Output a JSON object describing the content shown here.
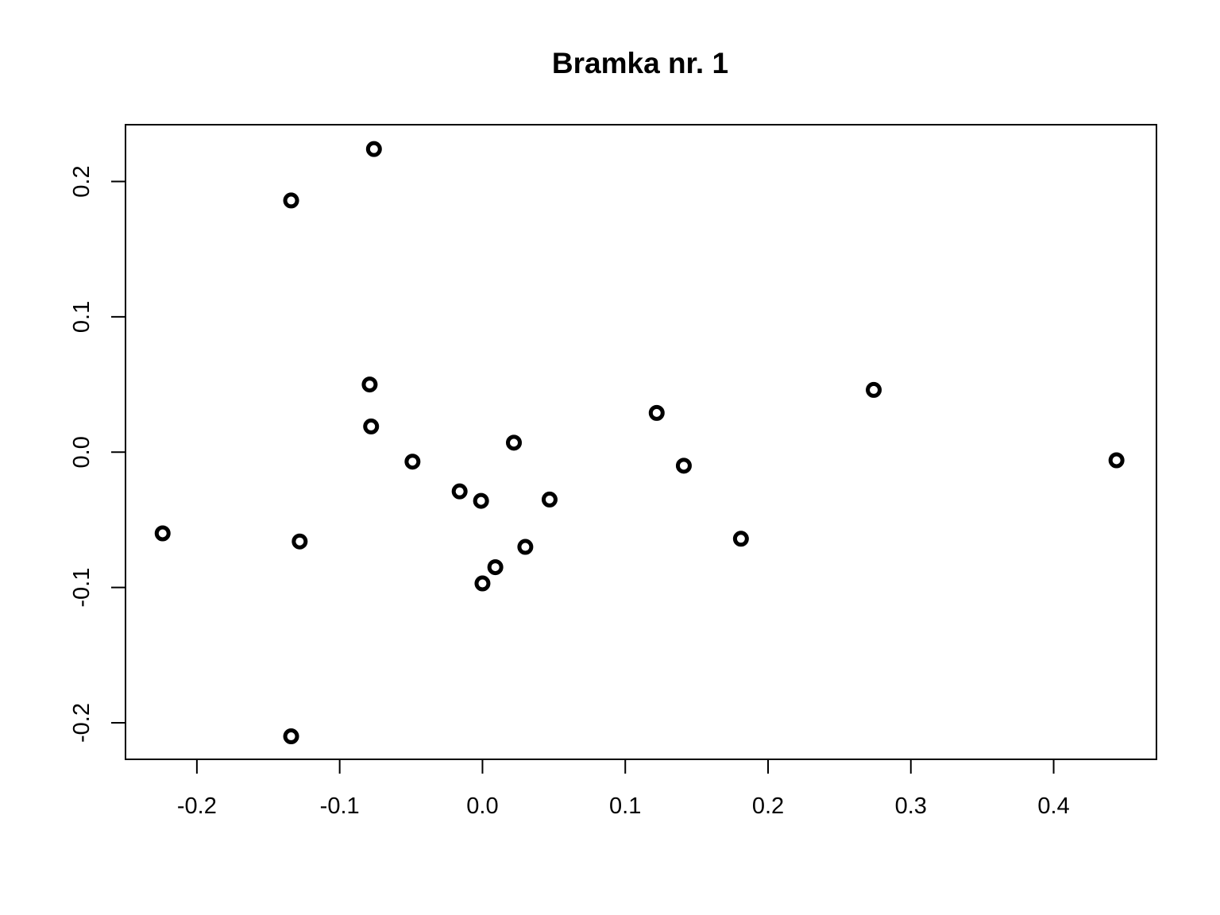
{
  "chart_data": {
    "type": "scatter",
    "title": "Bramka nr. 1",
    "xlabel": "",
    "ylabel": "",
    "xlim": [
      -0.25,
      0.472
    ],
    "ylim": [
      -0.227,
      0.242
    ],
    "x_ticks": [
      -0.2,
      -0.1,
      0.0,
      0.1,
      0.2,
      0.3,
      0.4
    ],
    "x_tick_labels": [
      "-0.2",
      "-0.1",
      "0.0",
      "0.1",
      "0.2",
      "0.3",
      "0.4"
    ],
    "y_ticks": [
      -0.2,
      -0.1,
      0.0,
      0.1,
      0.2
    ],
    "y_tick_labels": [
      "-0.2",
      "-0.1",
      "0.0",
      "0.1",
      "0.2"
    ],
    "grid": false,
    "legend": "none",
    "marker": "open-circle",
    "color": "#000000",
    "points": [
      {
        "x": -0.076,
        "y": 0.224
      },
      {
        "x": -0.134,
        "y": 0.186
      },
      {
        "x": -0.079,
        "y": 0.05
      },
      {
        "x": -0.078,
        "y": 0.019
      },
      {
        "x": -0.049,
        "y": -0.007
      },
      {
        "x": -0.016,
        "y": -0.029
      },
      {
        "x": -0.001,
        "y": -0.036
      },
      {
        "x": 0.022,
        "y": 0.007
      },
      {
        "x": 0.047,
        "y": -0.035
      },
      {
        "x": 0.03,
        "y": -0.07
      },
      {
        "x": 0.009,
        "y": -0.085
      },
      {
        "x": 0.0,
        "y": -0.097
      },
      {
        "x": -0.224,
        "y": -0.06
      },
      {
        "x": -0.128,
        "y": -0.066
      },
      {
        "x": -0.134,
        "y": -0.21
      },
      {
        "x": 0.122,
        "y": 0.029
      },
      {
        "x": 0.141,
        "y": -0.01
      },
      {
        "x": 0.181,
        "y": -0.064
      },
      {
        "x": 0.274,
        "y": 0.046
      },
      {
        "x": 0.444,
        "y": -0.006
      }
    ]
  }
}
